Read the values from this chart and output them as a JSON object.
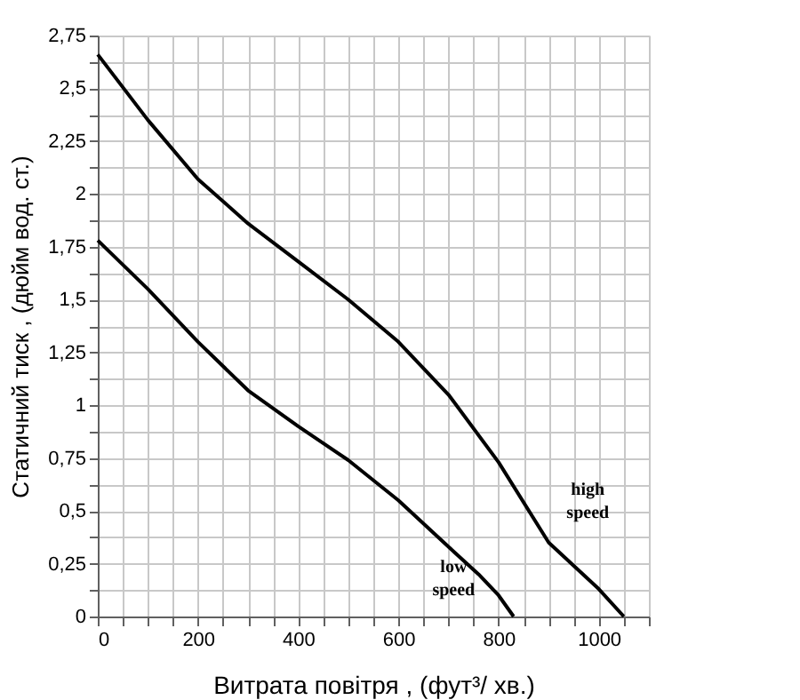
{
  "chart_data": {
    "type": "line",
    "xlabel": "Витрата повітря , (фут³/ хв.)",
    "ylabel": "Статичний тиск , (дюйм вод. ст.)",
    "xlim": [
      0,
      1100
    ],
    "ylim": [
      0,
      2.75
    ],
    "xticks": [
      0,
      {
        "value": 50,
        "label": null
      },
      {
        "value": 100,
        "label": null
      },
      {
        "value": 150,
        "label": null
      },
      200,
      {
        "value": 250,
        "label": null
      },
      {
        "value": 300,
        "label": null
      },
      {
        "value": 350,
        "label": null
      },
      400,
      {
        "value": 450,
        "label": null
      },
      {
        "value": 500,
        "label": null
      },
      {
        "value": 550,
        "label": null
      },
      600,
      {
        "value": 650,
        "label": null
      },
      {
        "value": 700,
        "label": null
      },
      {
        "value": 750,
        "label": null
      },
      800,
      {
        "value": 850,
        "label": null
      },
      {
        "value": 900,
        "label": null
      },
      {
        "value": 950,
        "label": null
      },
      1000,
      {
        "value": 1050,
        "label": null
      },
      {
        "value": 1100,
        "label": null
      }
    ],
    "yticks": [
      {
        "value": 0,
        "label": "0"
      },
      {
        "value": 0.125,
        "label": null
      },
      {
        "value": 0.25,
        "label": "0,25"
      },
      {
        "value": 0.375,
        "label": null
      },
      {
        "value": 0.5,
        "label": "0,5"
      },
      {
        "value": 0.625,
        "label": null
      },
      {
        "value": 0.75,
        "label": "0,75"
      },
      {
        "value": 0.875,
        "label": null
      },
      {
        "value": 1,
        "label": "1"
      },
      {
        "value": 1.125,
        "label": null
      },
      {
        "value": 1.25,
        "label": "1,25"
      },
      {
        "value": 1.375,
        "label": null
      },
      {
        "value": 1.5,
        "label": "1,5"
      },
      {
        "value": 1.625,
        "label": null
      },
      {
        "value": 1.75,
        "label": "1,75"
      },
      {
        "value": 1.875,
        "label": null
      },
      {
        "value": 2,
        "label": "2"
      },
      {
        "value": 2.125,
        "label": null
      },
      {
        "value": 2.25,
        "label": "2,25"
      },
      {
        "value": 2.375,
        "label": null
      },
      {
        "value": 2.5,
        "label": "2,5"
      },
      {
        "value": 2.625,
        "label": null
      },
      {
        "value": 2.75,
        "label": "2,75"
      }
    ],
    "grid": true,
    "line_style": "solid",
    "series": [
      {
        "name": "high speed",
        "color": "#000000",
        "x": [
          0,
          100,
          200,
          300,
          400,
          500,
          600,
          700,
          800,
          900,
          1000,
          1050
        ],
        "values": [
          2.66,
          2.35,
          2.07,
          1.86,
          1.68,
          1.5,
          1.3,
          1.05,
          0.73,
          0.35,
          0.13,
          0
        ]
      },
      {
        "name": "low speed",
        "color": "#000000",
        "x": [
          0,
          100,
          200,
          300,
          400,
          500,
          600,
          700,
          760,
          800,
          830
        ],
        "values": [
          1.78,
          1.55,
          1.3,
          1.07,
          0.9,
          0.74,
          0.55,
          0.33,
          0.2,
          0.1,
          0
        ]
      }
    ]
  }
}
